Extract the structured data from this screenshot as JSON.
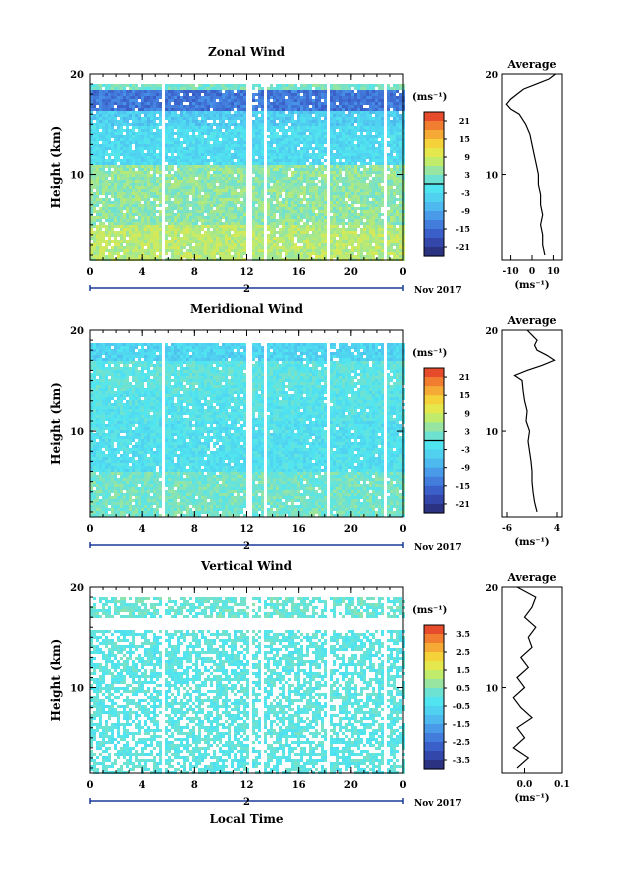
{
  "figure": {
    "date_label": "Nov 2017",
    "xlabel": "Local Time",
    "day_label": "2",
    "avg_title": "Average",
    "cbar_unit": "(ms⁻¹)",
    "avg_unit": "(ms⁻¹)",
    "ylabel": "Height (km)"
  },
  "chart_data": [
    {
      "type": "heatmap",
      "title": "Zonal Wind",
      "ylabel": "Height (km)",
      "xlabel": "",
      "x_ticks": [
        "0",
        "4",
        "8",
        "12",
        "16",
        "20",
        "0"
      ],
      "x_range_hours": [
        0,
        24
      ],
      "y_ticks": [
        "20",
        "10"
      ],
      "y_range_km": [
        1.5,
        20
      ],
      "colorbar": {
        "unit": "(ms⁻¹)",
        "ticks": [
          "21",
          "15",
          "9",
          "3",
          "-3",
          "-9",
          "-15",
          "-21"
        ],
        "range": [
          -24,
          24
        ]
      },
      "data_gaps_hours": [
        [
          5.3,
          5.6
        ],
        [
          11.9,
          12.4
        ],
        [
          13.2,
          13.5
        ],
        [
          18.0,
          18.4
        ],
        [
          22.5,
          22.7
        ]
      ],
      "regions": [
        {
          "height_km": [
            1.5,
            5
          ],
          "value": 7
        },
        {
          "height_km": [
            5,
            11
          ],
          "value": 4
        },
        {
          "height_km": [
            11,
            15
          ],
          "value": -3
        },
        {
          "height_km": [
            15,
            16.5
          ],
          "value": -5
        },
        {
          "height_km": [
            16.5,
            18.5
          ],
          "value": -14
        },
        {
          "height_km": [
            18.5,
            19.5
          ],
          "value": 2
        }
      ],
      "average_profile": {
        "title": "Average",
        "unit": "(ms⁻¹)",
        "x_ticks": [
          "-10",
          "0",
          "10"
        ],
        "x_range": [
          -14,
          14
        ],
        "heights_km": [
          2,
          3,
          4,
          5,
          6,
          7,
          8,
          9,
          10,
          11,
          12,
          13,
          14,
          15,
          16,
          16.5,
          17,
          17.5,
          18,
          18.5,
          19,
          19.5,
          20
        ],
        "values": [
          6,
          5,
          5,
          4,
          5,
          4,
          4,
          3,
          3,
          2,
          1,
          0,
          -1,
          -3,
          -6,
          -10,
          -12,
          -10,
          -7,
          -4,
          2,
          8,
          11
        ]
      }
    },
    {
      "type": "heatmap",
      "title": "Meridional Wind",
      "ylabel": "Height (km)",
      "xlabel": "",
      "x_ticks": [
        "0",
        "4",
        "8",
        "12",
        "16",
        "20",
        "0"
      ],
      "x_range_hours": [
        0,
        24
      ],
      "y_ticks": [
        "20",
        "10"
      ],
      "y_range_km": [
        1.5,
        20
      ],
      "colorbar": {
        "unit": "(ms⁻¹)",
        "ticks": [
          "21",
          "15",
          "9",
          "3",
          "-3",
          "-9",
          "-15",
          "-21"
        ],
        "range": [
          -24,
          24
        ]
      },
      "data_gaps_hours": [
        [
          5.3,
          5.6
        ],
        [
          11.8,
          12.3
        ],
        [
          13.2,
          13.5
        ],
        [
          18.0,
          18.4
        ],
        [
          22.5,
          22.7
        ]
      ],
      "regions": [
        {
          "height_km": [
            1.5,
            6
          ],
          "value": 2
        },
        {
          "height_km": [
            6,
            11
          ],
          "value": -2
        },
        {
          "height_km": [
            11,
            14
          ],
          "value": -1
        },
        {
          "height_km": [
            14,
            17
          ],
          "value": 0
        },
        {
          "height_km": [
            17,
            19
          ],
          "value": -4
        }
      ],
      "average_profile": {
        "title": "Average",
        "unit": "(ms⁻¹)",
        "x_ticks": [
          "-6",
          "4"
        ],
        "x_range": [
          -7,
          5
        ],
        "heights_km": [
          2,
          3,
          4,
          5,
          6,
          7,
          8,
          9,
          10,
          11,
          12,
          13,
          14,
          15,
          15.5,
          16,
          16.5,
          17,
          17.5,
          18,
          18.5,
          19,
          19.5,
          20
        ],
        "values": [
          0,
          -0.5,
          -0.8,
          -1,
          -1,
          -1.2,
          -1.5,
          -1.8,
          -1.5,
          -2.2,
          -2,
          -2.5,
          -2.8,
          -3,
          -4.5,
          -2,
          1,
          3.5,
          2,
          0,
          -0.5,
          0,
          -1,
          -2
        ]
      }
    },
    {
      "type": "heatmap",
      "title": "Vertical Wind",
      "ylabel": "Height (km)",
      "xlabel": "Local Time",
      "x_ticks": [
        "0",
        "4",
        "8",
        "12",
        "16",
        "20",
        "0"
      ],
      "x_range_hours": [
        0,
        24
      ],
      "y_ticks": [
        "20",
        "10"
      ],
      "y_range_km": [
        1.5,
        20
      ],
      "colorbar": {
        "unit": "(ms⁻¹)",
        "ticks": [
          "3.5",
          "2.5",
          "1.5",
          "0.5",
          "-0.5",
          "-1.5",
          "-2.5",
          "-3.5"
        ],
        "range": [
          -4,
          4
        ]
      },
      "data_gaps_hours": [
        [
          5.3,
          5.6
        ],
        [
          12.0,
          12.4
        ],
        [
          13.0,
          13.3
        ],
        [
          18.0,
          18.4
        ],
        [
          22.5,
          22.7
        ]
      ],
      "regions": [
        {
          "height_km": [
            1.5,
            16
          ],
          "value": 0
        },
        {
          "height_km": [
            17,
            20
          ],
          "value": 0.2
        }
      ],
      "average_profile": {
        "title": "Average",
        "unit": "(ms⁻¹)",
        "x_ticks": [
          "0.0",
          "0.1"
        ],
        "x_range": [
          -0.06,
          0.1
        ],
        "heights_km": [
          2,
          3,
          4,
          5,
          6,
          7,
          8,
          9,
          10,
          11,
          12,
          13,
          14,
          15,
          16,
          17,
          18,
          19,
          20
        ],
        "values": [
          -0.02,
          0.01,
          -0.03,
          0.0,
          -0.02,
          0.02,
          -0.01,
          -0.03,
          0.0,
          -0.02,
          0.01,
          -0.01,
          0.02,
          0.01,
          0.03,
          0.0,
          0.02,
          0.03,
          -0.02
        ]
      }
    }
  ]
}
